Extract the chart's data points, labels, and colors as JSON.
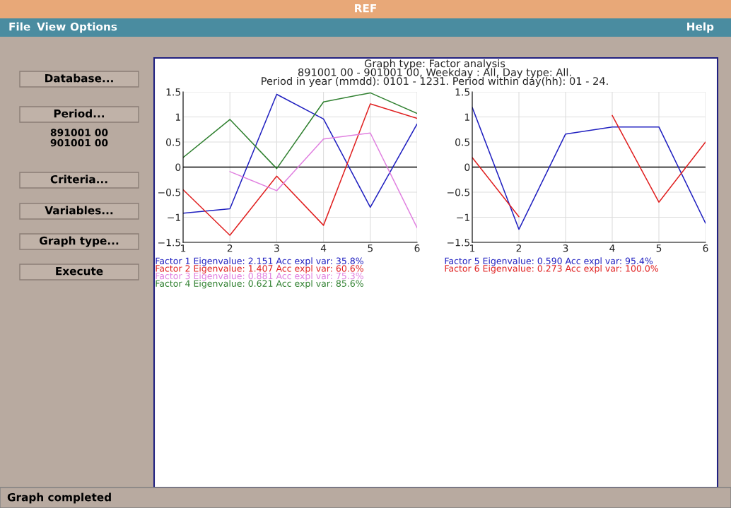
{
  "chart_data": [
    {
      "type": "line",
      "title": "Graph type: Factor analysis\n891001 00 - 901001 00, Weekday : All, Day type: All.\nPeriod in year (mmdd): 0101 - 1231. Period within day(hh): 01 - 24.",
      "x": [
        1,
        2,
        3,
        4,
        5,
        6
      ],
      "xlim": [
        1,
        6
      ],
      "xticks": [
        1,
        2,
        3,
        4,
        5,
        6
      ],
      "ylim": [
        -1.5,
        1.5
      ],
      "yticks": [
        {
          "value": -1.5,
          "label": "−1.5"
        },
        {
          "value": -1,
          "label": "−1"
        },
        {
          "value": -0.5,
          "label": "−0.5"
        },
        0,
        0.5,
        1,
        1.5
      ],
      "grid": true,
      "legend": "bottom",
      "ref_lines": [
        {
          "axis": "y",
          "value": 0,
          "color": "#000000"
        }
      ],
      "series": [
        {
          "name": "Factor 1 Eigenvalue: 2.151 Acc expl var: 35.8%",
          "color": "#2020c0",
          "values": [
            -0.92,
            -0.83,
            1.45,
            0.96,
            -0.8,
            0.86
          ]
        },
        {
          "name": "Factor 2 Eigenvalue: 1.407 Acc expl var: 60.6%",
          "color": "#e02020",
          "values": [
            -0.45,
            -1.36,
            -0.18,
            -1.16,
            1.26,
            0.97
          ]
        },
        {
          "name": "Factor 3 Eigenvalue: 0.881 Acc expl var: 75.3%",
          "color": "#e080e0",
          "values": [
            null,
            -0.09,
            -0.47,
            0.56,
            0.68,
            -1.21
          ]
        },
        {
          "name": "Factor 4 Eigenvalue: 0.621 Acc expl var: 85.6%",
          "color": "#308030",
          "values": [
            0.19,
            0.95,
            -0.03,
            1.3,
            1.48,
            1.07
          ]
        }
      ],
      "annotations": [
        "REF",
        "File",
        "View",
        "Options",
        "Help",
        "Database...",
        "Period...",
        "891001 00\n901001 00",
        "Criteria...",
        "Variables...",
        "Graph type...",
        "Execute",
        "Graph completed"
      ]
    },
    {
      "type": "line",
      "x": [
        1,
        2,
        3,
        4,
        5,
        6
      ],
      "xlim": [
        1,
        6
      ],
      "xticks": [
        1,
        2,
        3,
        4,
        5,
        6
      ],
      "ylim": [
        -1.5,
        1.5
      ],
      "yticks": [
        {
          "value": -1.5,
          "label": "−1.5"
        },
        {
          "value": -1,
          "label": "−1"
        },
        {
          "value": -0.5,
          "label": "−0.5"
        },
        0,
        0.5,
        1,
        1.5
      ],
      "grid": true,
      "legend": "bottom",
      "ref_lines": [
        {
          "axis": "y",
          "value": 0,
          "color": "#000000"
        }
      ],
      "series": [
        {
          "name": "Factor 5 Eigenvalue: 0.590 Acc expl var: 95.4%",
          "color": "#2020c0",
          "values": [
            1.19,
            -1.24,
            0.66,
            0.8,
            0.8,
            -1.12
          ]
        },
        {
          "name": "Factor 6 Eigenvalue: 0.273 Acc expl var: 100.0%",
          "color": "#e02020",
          "values": [
            0.19,
            -0.99,
            null,
            1.03,
            -0.7,
            0.5
          ]
        }
      ]
    }
  ]
}
